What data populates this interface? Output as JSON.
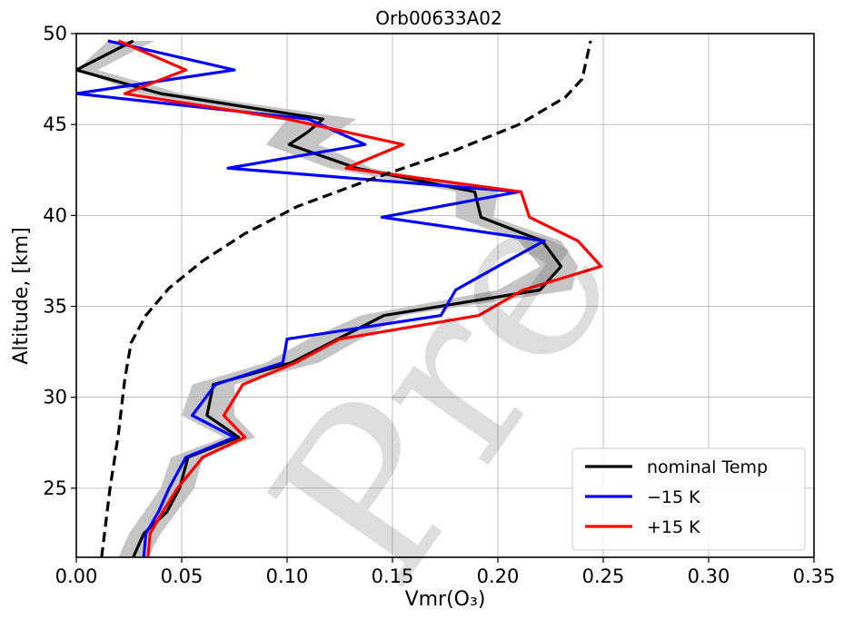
{
  "chart_data": {
    "type": "line",
    "title": "Orb00633A02",
    "xlabel": "Vmr(O₃)",
    "ylabel": "Altitude, [km]",
    "xlim": [
      0.0,
      0.35
    ],
    "ylim": [
      21.2,
      50
    ],
    "xticks": [
      "0.00",
      "0.05",
      "0.10",
      "0.15",
      "0.20",
      "0.25",
      "0.30",
      "0.35"
    ],
    "yticks": [
      "25",
      "30",
      "35",
      "40",
      "45",
      "50"
    ],
    "grid": true,
    "legend_position": "bottom-right",
    "watermark": "Pre",
    "uncertainty_band": {
      "color": "#bbbbbb",
      "y": [
        21.2,
        22.5,
        25,
        26.7,
        27.8,
        29.0,
        30.7,
        31.9,
        33.2,
        34.5,
        35.9,
        37.2,
        38.6,
        39.9,
        41.3,
        42.6,
        43.9,
        45.3,
        46.7,
        48.0,
        49.6
      ],
      "x_low": [
        0.02,
        0.025,
        0.04,
        0.045,
        0.07,
        0.05,
        0.055,
        0.09,
        0.11,
        0.135,
        0.2,
        0.22,
        0.21,
        0.18,
        0.18,
        0.12,
        0.09,
        0.1,
        0.03,
        0.0,
        0.015
      ],
      "x_high": [
        0.034,
        0.04,
        0.056,
        0.06,
        0.085,
        0.075,
        0.075,
        0.115,
        0.135,
        0.155,
        0.235,
        0.238,
        0.23,
        0.198,
        0.2,
        0.14,
        0.115,
        0.133,
        0.05,
        0.01,
        0.037
      ]
    },
    "series": [
      {
        "name": "nominal Temp",
        "color": "#000000",
        "y": [
          21.2,
          22.5,
          23.7,
          25.0,
          26.7,
          27.8,
          29.0,
          30.7,
          31.9,
          33.2,
          34.5,
          35.9,
          37.2,
          38.6,
          39.9,
          41.3,
          42.6,
          43.9,
          44.6,
          45.3,
          46.7,
          48.0,
          49.6
        ],
        "x": [
          0.027,
          0.032,
          0.043,
          0.049,
          0.053,
          0.077,
          0.062,
          0.065,
          0.102,
          0.124,
          0.146,
          0.22,
          0.23,
          0.221,
          0.192,
          0.189,
          0.133,
          0.101,
          0.11,
          0.117,
          0.04,
          0.0,
          0.027
        ]
      },
      {
        "name": "−15 K",
        "color": "#0000ff",
        "y": [
          21.2,
          22.5,
          23.7,
          25.0,
          26.7,
          27.8,
          29.0,
          30.7,
          31.9,
          33.2,
          34.5,
          35.9,
          37.2,
          38.6,
          39.9,
          41.3,
          42.6,
          43.9,
          45.3,
          46.7,
          48.0,
          49.6
        ],
        "x": [
          0.032,
          0.033,
          0.039,
          0.044,
          0.052,
          0.075,
          0.055,
          0.066,
          0.098,
          0.1,
          0.173,
          0.18,
          0.2,
          0.222,
          0.145,
          0.21,
          0.072,
          0.137,
          0.11,
          0.0,
          0.075,
          0.015
        ]
      },
      {
        "name": "+15 K",
        "color": "#ff0000",
        "y": [
          21.2,
          22.5,
          23.7,
          25.0,
          26.7,
          27.8,
          29.0,
          30.7,
          31.9,
          33.2,
          34.5,
          35.9,
          37.2,
          38.6,
          39.9,
          41.3,
          42.6,
          43.9,
          45.3,
          46.7,
          48.0,
          49.6
        ],
        "x": [
          0.034,
          0.035,
          0.041,
          0.048,
          0.06,
          0.08,
          0.07,
          0.079,
          0.104,
          0.125,
          0.191,
          0.212,
          0.249,
          0.238,
          0.215,
          0.211,
          0.128,
          0.155,
          0.1,
          0.023,
          0.052,
          0.02
        ]
      },
      {
        "name": "",
        "color": "#000000",
        "dashed": true,
        "y": [
          21.2,
          25.0,
          28.0,
          31.0,
          33.0,
          34.5,
          36.0,
          37.5,
          39.0,
          40.5,
          42.0,
          43.5,
          45.0,
          46.5,
          47.5,
          49.6
        ],
        "x": [
          0.012,
          0.016,
          0.02,
          0.023,
          0.026,
          0.033,
          0.044,
          0.06,
          0.08,
          0.105,
          0.14,
          0.178,
          0.21,
          0.232,
          0.24,
          0.244
        ]
      }
    ]
  }
}
